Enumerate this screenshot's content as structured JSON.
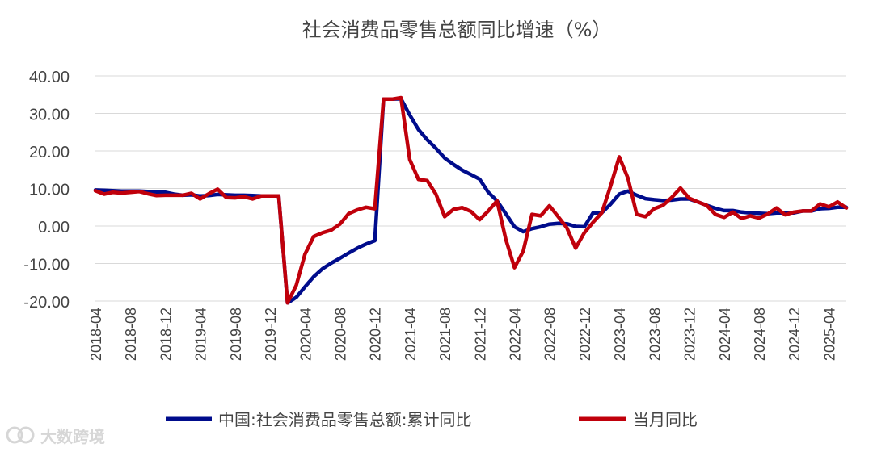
{
  "chart_data": {
    "type": "line",
    "title": "社会消费品零售总额同比增速（%）",
    "xlabel": "",
    "ylabel": "",
    "ylim": [
      -20,
      40
    ],
    "yticks": [
      "-20.00",
      "-10.00",
      "0.00",
      "10.00",
      "20.00",
      "30.00",
      "40.00"
    ],
    "ytick_values": [
      -20,
      -10,
      0,
      10,
      20,
      30,
      40
    ],
    "grid": "horizontal",
    "legend_position": "bottom",
    "xtick_labels": [
      "2018-04",
      "2018-08",
      "2018-12",
      "2019-04",
      "2019-08",
      "2019-12",
      "2020-04",
      "2020-08",
      "2020-12",
      "2021-04",
      "2021-08",
      "2021-12",
      "2022-04",
      "2022-08",
      "2022-12",
      "2023-04",
      "2023-08",
      "2023-12",
      "2024-04",
      "2024-08",
      "2024-12",
      "2025-04"
    ],
    "x": [
      "2018-04",
      "2018-05",
      "2018-06",
      "2018-07",
      "2018-08",
      "2018-09",
      "2018-10",
      "2018-11",
      "2018-12",
      "2019-01",
      "2019-02",
      "2019-03",
      "2019-04",
      "2019-05",
      "2019-06",
      "2019-07",
      "2019-08",
      "2019-09",
      "2019-10",
      "2019-11",
      "2019-12",
      "2020-01",
      "2020-02",
      "2020-03",
      "2020-04",
      "2020-05",
      "2020-06",
      "2020-07",
      "2020-08",
      "2020-09",
      "2020-10",
      "2020-11",
      "2020-12",
      "2021-01",
      "2021-02",
      "2021-03",
      "2021-04",
      "2021-05",
      "2021-06",
      "2021-07",
      "2021-08",
      "2021-09",
      "2021-10",
      "2021-11",
      "2021-12",
      "2022-01",
      "2022-02",
      "2022-03",
      "2022-04",
      "2022-05",
      "2022-06",
      "2022-07",
      "2022-08",
      "2022-09",
      "2022-10",
      "2022-11",
      "2022-12",
      "2023-01",
      "2023-02",
      "2023-03",
      "2023-04",
      "2023-05",
      "2023-06",
      "2023-07",
      "2023-08",
      "2023-09",
      "2023-10",
      "2023-11",
      "2023-12",
      "2024-01",
      "2024-02",
      "2024-03",
      "2024-04",
      "2024-05",
      "2024-06",
      "2024-07",
      "2024-08",
      "2024-09",
      "2024-10",
      "2024-11",
      "2024-12",
      "2025-01",
      "2025-02",
      "2025-03",
      "2025-04",
      "2025-05",
      "2025-06"
    ],
    "series": [
      {
        "name": "中国:社会消费品零售总额:累计同比",
        "color": "#000c8c",
        "values": [
          9.6,
          9.5,
          9.4,
          9.3,
          9.3,
          9.3,
          9.2,
          9.1,
          9.0,
          8.5,
          8.2,
          8.3,
          8.0,
          8.1,
          8.4,
          8.3,
          8.2,
          8.2,
          8.1,
          8.0,
          8.0,
          8.0,
          -20.5,
          -19.0,
          -16.2,
          -13.5,
          -11.4,
          -9.9,
          -8.6,
          -7.2,
          -5.9,
          -4.8,
          -3.9,
          33.8,
          33.8,
          33.9,
          29.6,
          25.7,
          23.0,
          20.7,
          18.1,
          16.4,
          14.9,
          13.7,
          12.5,
          9.0,
          6.7,
          3.3,
          -0.2,
          -1.5,
          -0.7,
          -0.2,
          0.5,
          0.7,
          0.6,
          -0.1,
          -0.2,
          3.5,
          3.5,
          5.8,
          8.5,
          9.3,
          8.2,
          7.3,
          7.0,
          6.8,
          6.9,
          7.2,
          7.2,
          6.4,
          5.5,
          4.7,
          4.1,
          4.1,
          3.7,
          3.5,
          3.4,
          3.3,
          3.5,
          3.5,
          3.5,
          4.0,
          4.0,
          4.6,
          4.7,
          5.0,
          5.0
        ]
      },
      {
        "name": "当月同比",
        "color": "#c0000b",
        "values": [
          9.4,
          8.5,
          9.0,
          8.8,
          9.0,
          9.2,
          8.6,
          8.1,
          8.2,
          8.2,
          8.2,
          8.7,
          7.2,
          8.6,
          9.8,
          7.6,
          7.5,
          7.8,
          7.2,
          8.0,
          8.0,
          8.0,
          -20.5,
          -15.8,
          -7.5,
          -2.8,
          -1.8,
          -1.1,
          0.5,
          3.3,
          4.3,
          5.0,
          4.6,
          33.8,
          33.8,
          34.2,
          17.7,
          12.4,
          12.1,
          8.5,
          2.5,
          4.4,
          4.9,
          3.9,
          1.7,
          4.0,
          6.7,
          -3.5,
          -11.1,
          -6.7,
          3.1,
          2.7,
          5.4,
          2.5,
          -0.5,
          -5.9,
          -1.8,
          1.0,
          3.5,
          10.6,
          18.4,
          12.7,
          3.1,
          2.5,
          4.6,
          5.5,
          7.6,
          10.1,
          7.4,
          6.4,
          5.5,
          3.1,
          2.3,
          3.7,
          2.0,
          2.7,
          2.1,
          3.2,
          4.8,
          3.0,
          3.7,
          4.0,
          4.0,
          5.9,
          5.1,
          6.4,
          4.8
        ]
      }
    ]
  },
  "watermark": {
    "text": "大数跨境"
  }
}
